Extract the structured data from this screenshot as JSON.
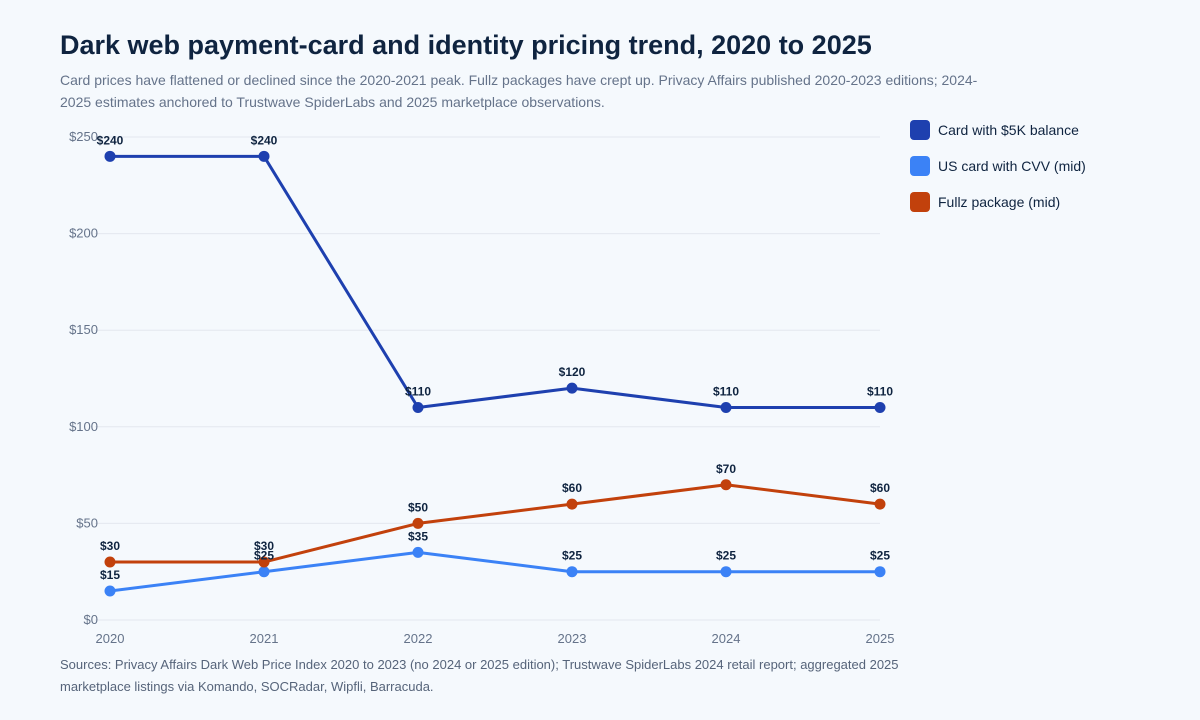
{
  "header": {
    "title": "Dark web payment-card and identity pricing trend, 2020 to 2025",
    "subtitle": "Card prices have flattened or declined since the 2020-2021 peak. Fullz packages have crept up. Privacy Affairs published 2020-2023 editions; 2024-2025 estimates anchored to Trustwave SpiderLabs and 2025 marketplace observations."
  },
  "footer": {
    "sources": "Sources: Privacy Affairs Dark Web Price Index 2020 to 2023 (no 2024 or 2025 edition); Trustwave SpiderLabs 2024 retail report; aggregated 2025 marketplace listings via Komando, SOCRadar, Wipfli, Barracuda."
  },
  "chart_data": {
    "type": "line",
    "title": "Dark web payment-card and identity pricing trend, 2020 to 2025",
    "subtitle": "Card prices have flattened or declined since the 2020-2021 peak. Fullz packages have crept up. Privacy Affairs published 2020-2023 editions; 2024-2025 estimates anchored to Trustwave SpiderLabs and 2025 marketplace observations.",
    "xlabel": "",
    "ylabel": "",
    "x": [
      "2020",
      "2021",
      "2022",
      "2023",
      "2024",
      "2025"
    ],
    "ylim": [
      0,
      250
    ],
    "yticks": [
      0,
      50,
      100,
      150,
      200,
      250
    ],
    "ytick_labels": [
      "$0",
      "$50",
      "$100",
      "$150",
      "$200",
      "$250"
    ],
    "grid": true,
    "legend_position": "right",
    "series": [
      {
        "name": "Card with $5K balance",
        "color": "#1e40af",
        "values": [
          240,
          240,
          110,
          120,
          110,
          110
        ],
        "labels": [
          "$240",
          "$240",
          "$110",
          "$120",
          "$110",
          "$110"
        ]
      },
      {
        "name": "US card with CVV (mid)",
        "color": "#3b82f6",
        "values": [
          15,
          25,
          35,
          25,
          25,
          25
        ],
        "labels": [
          "$15",
          "$25",
          "$35",
          "$25",
          "$25",
          "$25"
        ]
      },
      {
        "name": "Fullz package (mid)",
        "color": "#c2410c",
        "values": [
          30,
          30,
          50,
          60,
          70,
          60
        ],
        "labels": [
          "$30",
          "$30",
          "$50",
          "$60",
          "$70",
          "$60"
        ]
      }
    ]
  }
}
